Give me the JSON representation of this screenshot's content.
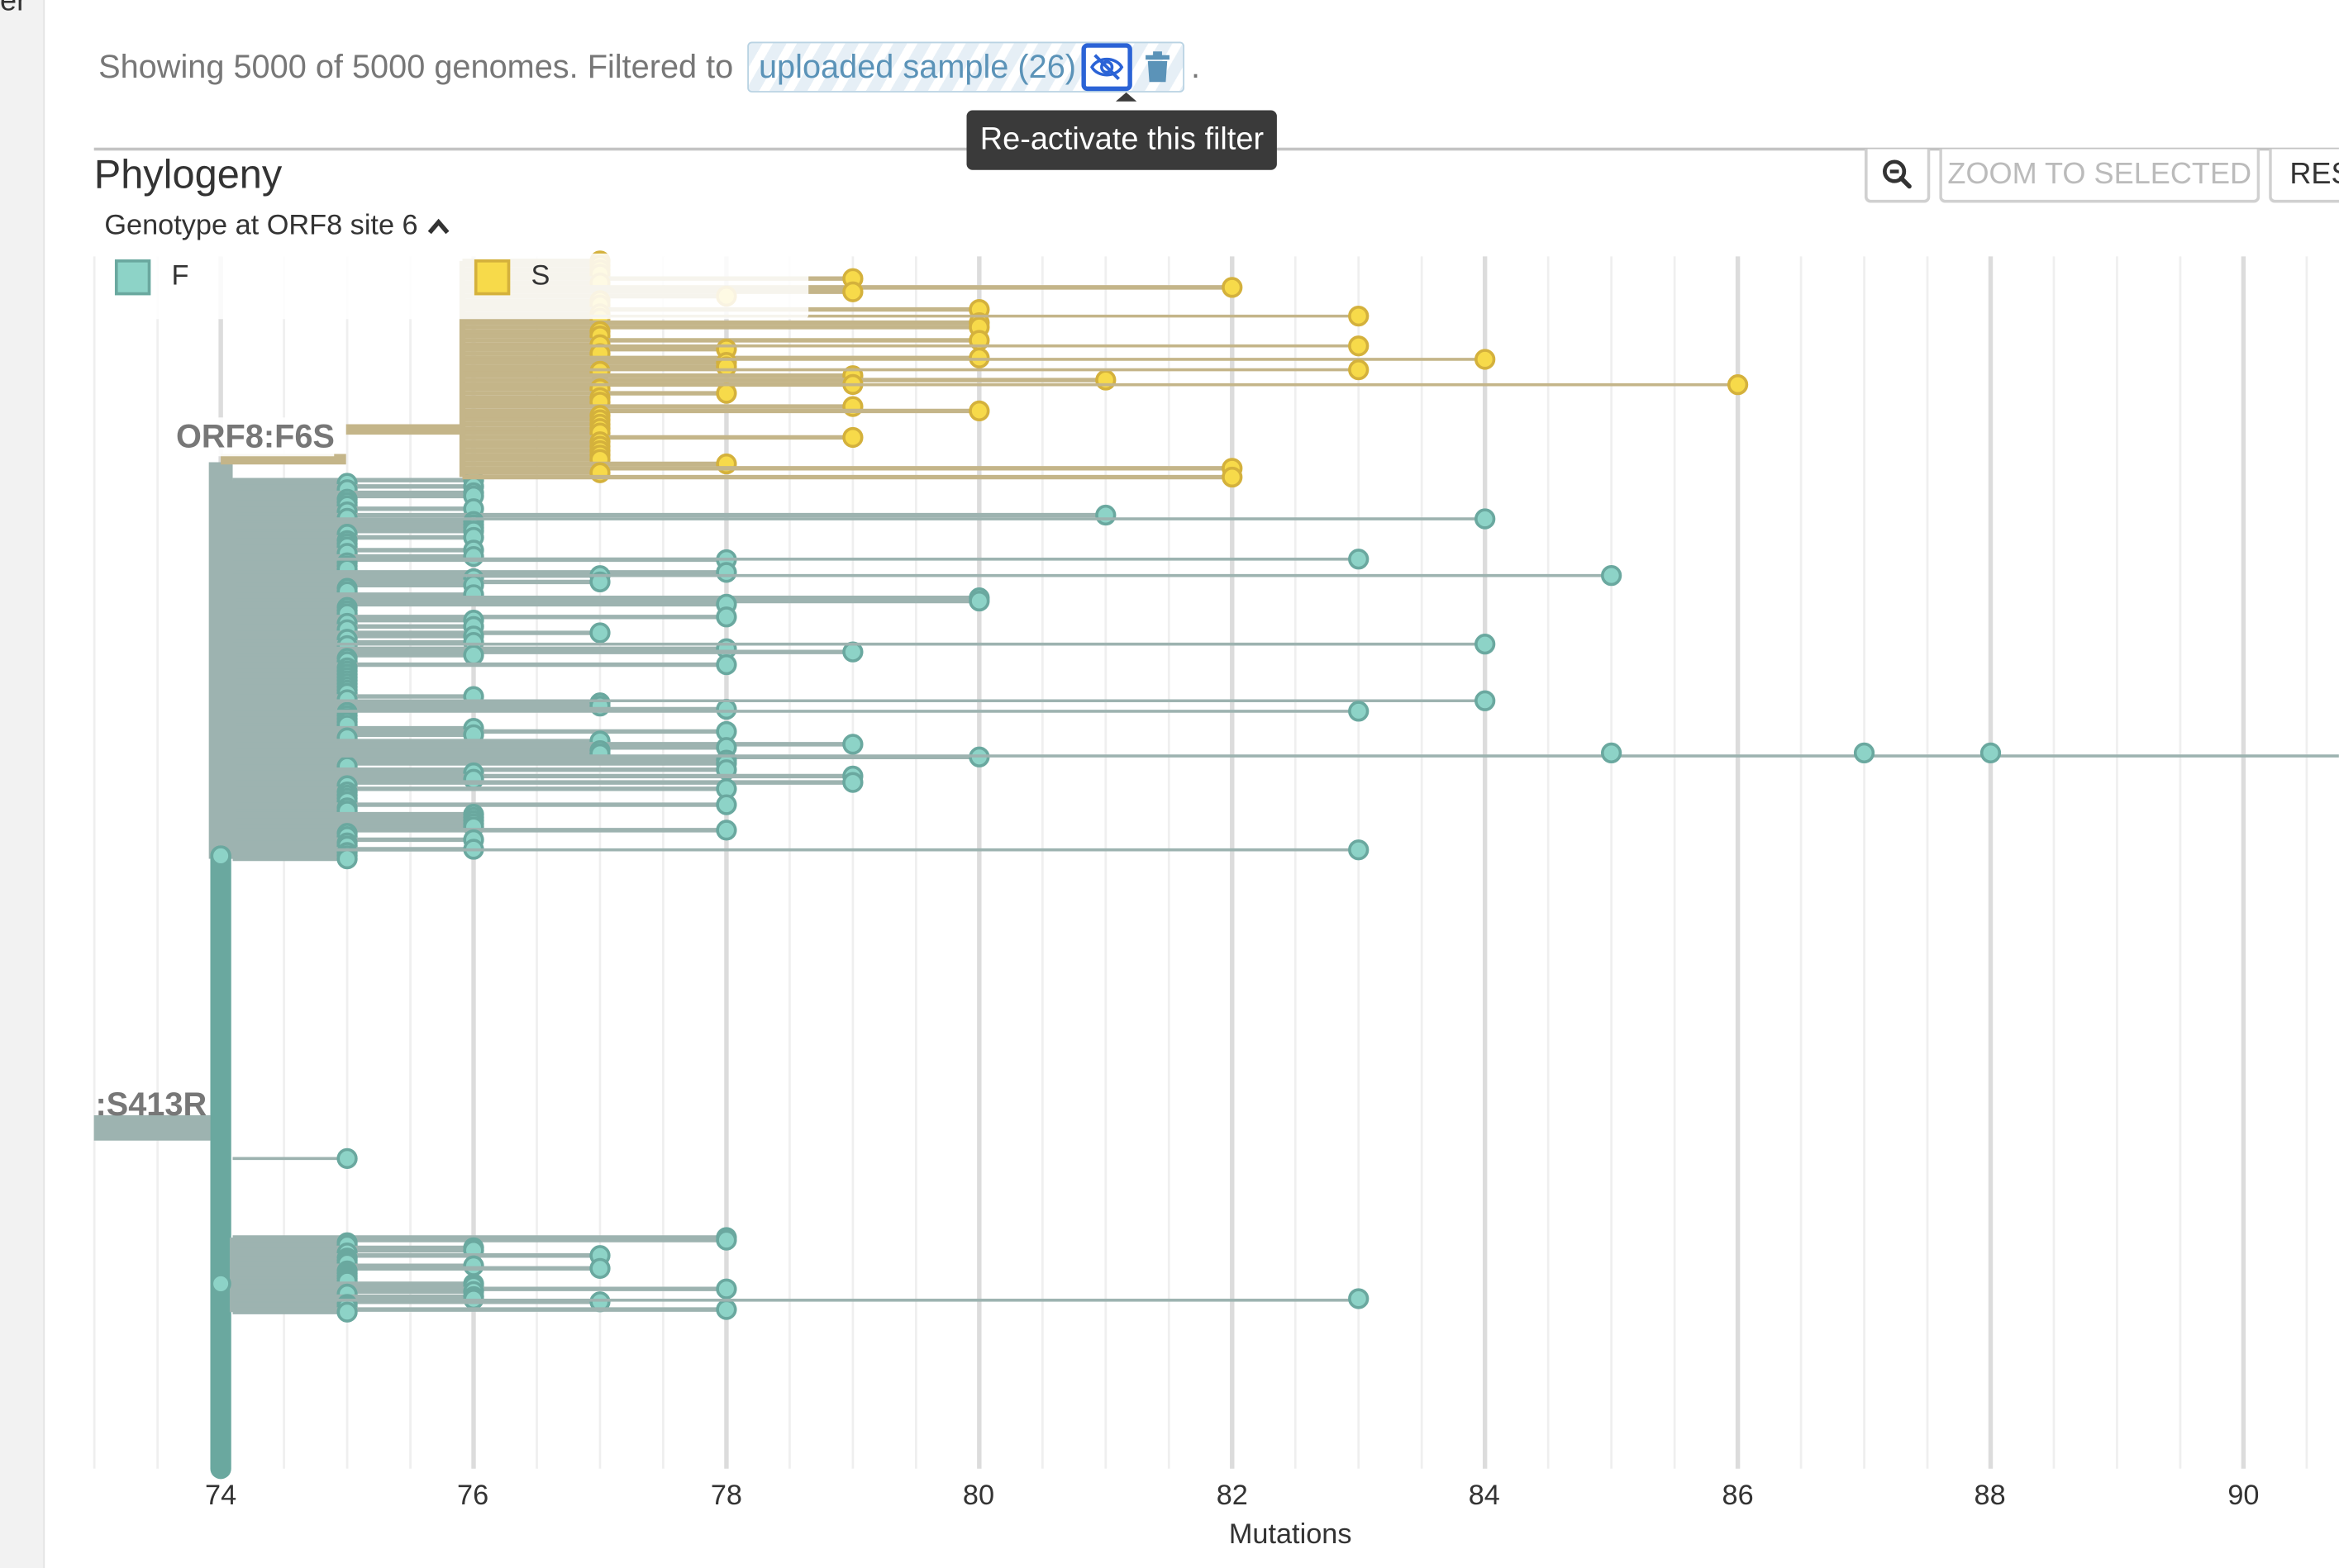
{
  "edge_text": "er",
  "summary": {
    "text": "Showing 5000 of 5000 genomes. Filtered to",
    "filter_label": "uploaded sample (26)",
    "reactivate_icon": "eye-slash-icon",
    "delete_icon": "trash-icon",
    "period": ".",
    "tooltip": "Re-activate this filter"
  },
  "panel": {
    "title": "Phylogeny",
    "zoom_out_icon": "zoom-out-icon",
    "zoom_to_selected": "ZOOM TO SELECTED",
    "reset_layout": "RES"
  },
  "color_by": {
    "label": "Genotype at ORF8 site 6",
    "icon": "chevron-up-icon"
  },
  "legend": [
    {
      "label": "F",
      "color": "#8dd3c7"
    },
    {
      "label": "S",
      "color": "#f7da4a"
    }
  ],
  "branch_labels": {
    "f6s": "ORF8:F6S",
    "s413r": ":S413R"
  },
  "axis": {
    "ticks": [
      "74",
      "76",
      "78",
      "80",
      "82",
      "84",
      "86",
      "88",
      "90"
    ],
    "title": "Mutations"
  },
  "colors": {
    "teal_tip": "#8dd3c7",
    "teal_branch": "#9db3b0",
    "yellow_tip": "#f7da4a",
    "yellow_branch": "#c4b589",
    "accent": "#2b63d6"
  }
}
